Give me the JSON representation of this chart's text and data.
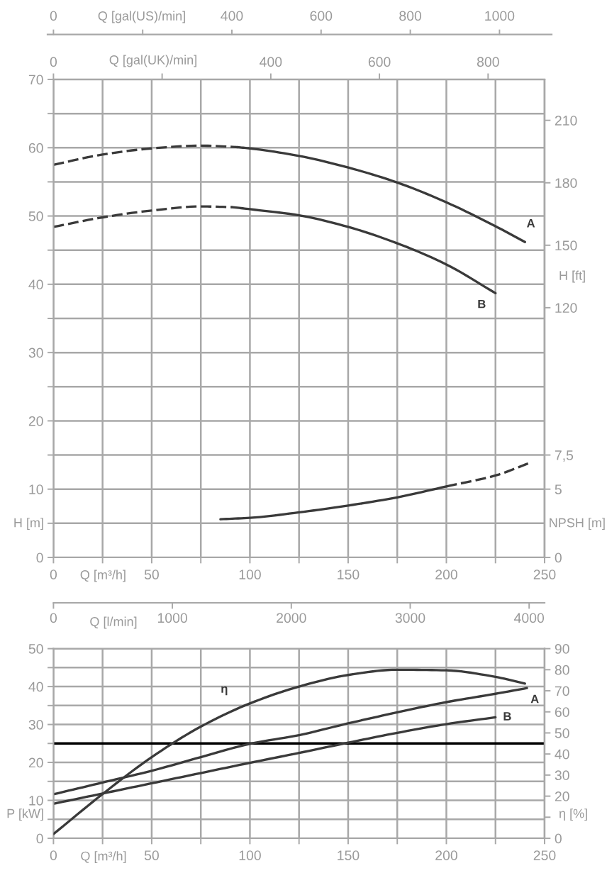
{
  "chart_data": [
    {
      "type": "line",
      "xlabel": "Q [m³/h]",
      "ylabel": "H [m]",
      "y2label": "H [ft]",
      "y3label": "NPSH [m]",
      "x2label": "Q [gal(UK)/min]",
      "annotations": [
        "Q [gal(US)/min]",
        "0",
        "400",
        "600",
        "800",
        "1000"
      ],
      "xlim": [
        0,
        250
      ],
      "xticks": [
        0,
        {
          "value": 25,
          "label": null
        },
        50,
        {
          "value": 75,
          "label": null
        },
        100,
        {
          "value": 125,
          "label": null
        },
        150,
        {
          "value": 175,
          "label": null
        },
        200,
        {
          "value": 225,
          "label": null
        },
        250
      ],
      "ylim": [
        0,
        70
      ],
      "yticks": [
        0,
        {
          "value": 5,
          "label": null
        },
        10,
        {
          "value": 15,
          "label": null
        },
        20,
        {
          "value": 25,
          "label": null
        },
        30,
        {
          "value": 35,
          "label": null
        },
        40,
        {
          "value": 45,
          "label": null
        },
        50,
        {
          "value": 55,
          "label": null
        },
        60,
        {
          "value": 65,
          "label": null
        },
        70
      ],
      "y2lim": [
        0,
        229.66
      ],
      "y2ticks": [
        120,
        150,
        180,
        210
      ],
      "y3lim": [
        0,
        35
      ],
      "y3ticks": [
        0,
        5,
        {
          "value": 7.5,
          "label": "7,5"
        }
      ],
      "x2lim": [
        0,
        904
      ],
      "x2ticks": [
        0,
        {
          "value": 200,
          "label": null
        },
        400,
        600,
        800
      ],
      "grid": true,
      "series": [
        {
          "color": "#3a3a3a",
          "line_style": "dashed",
          "x": [
            0,
            25,
            50,
            75,
            93
          ],
          "values": [
            57.5,
            59.0,
            59.9,
            60.3,
            60.1
          ]
        },
        {
          "name": "A",
          "color": "#3a3a3a",
          "line_style": "solid",
          "x": [
            93,
            100,
            125,
            150,
            175,
            200,
            225,
            240
          ],
          "values": [
            60.1,
            59.9,
            58.8,
            57.1,
            54.9,
            52.0,
            48.5,
            46.2
          ]
        },
        {
          "color": "#3a3a3a",
          "line_style": "dashed",
          "x": [
            0,
            25,
            50,
            75,
            91
          ],
          "values": [
            48.4,
            49.8,
            50.8,
            51.4,
            51.3
          ]
        },
        {
          "name": "B",
          "color": "#3a3a3a",
          "line_style": "solid",
          "x": [
            91,
            100,
            125,
            150,
            175,
            200,
            225
          ],
          "values": [
            51.3,
            51.0,
            50.1,
            48.4,
            46.0,
            42.9,
            38.7
          ]
        },
        {
          "color": "#3a3a3a",
          "line_style": "solid",
          "axis": "y3",
          "x": [
            85,
            100,
            125,
            150,
            175,
            200
          ],
          "values": [
            2.8,
            2.9,
            3.3,
            3.8,
            4.4,
            5.2
          ]
        },
        {
          "color": "#3a3a3a",
          "line_style": "dashed",
          "axis": "y3",
          "x": [
            200,
            225,
            242
          ],
          "values": [
            5.2,
            6.0,
            6.9
          ]
        }
      ]
    },
    {
      "type": "line",
      "xlabel": "Q [m³/h]",
      "ylabel": "P [kW]",
      "y2label": "η [%]",
      "x2label": "Q [l/min]",
      "xlim": [
        0,
        250
      ],
      "xticks": [
        0,
        {
          "value": 25,
          "label": null
        },
        50,
        {
          "value": 75,
          "label": null
        },
        100,
        {
          "value": 125,
          "label": null
        },
        150,
        {
          "value": 175,
          "label": null
        },
        200,
        {
          "value": 225,
          "label": null
        },
        250
      ],
      "ylim": [
        0,
        50
      ],
      "yticks": [
        0,
        {
          "value": 5,
          "label": null
        },
        10,
        {
          "value": 15,
          "label": null
        },
        20,
        {
          "value": 25,
          "label": null
        },
        30,
        {
          "value": 35,
          "label": null
        },
        40,
        {
          "value": 45,
          "label": null
        },
        50
      ],
      "y2lim": [
        0,
        90
      ],
      "y2ticks": [
        0,
        {
          "value": 10,
          "label": null
        },
        20,
        30,
        40,
        50,
        60,
        70,
        80,
        90
      ],
      "x2lim": [
        0,
        4130
      ],
      "x2ticks": [
        0,
        1000,
        2000,
        3000,
        4000
      ],
      "grid": true,
      "ref_lines": [
        {
          "axis": "y",
          "value": 25,
          "color": "#000000"
        }
      ],
      "series": [
        {
          "name": "η",
          "color": "#3a3a3a",
          "line_style": "solid",
          "axis": "y2",
          "x": [
            0,
            25,
            50,
            75,
            100,
            125,
            150,
            175,
            200,
            225,
            240
          ],
          "values": [
            2.0,
            21.0,
            38.5,
            53.0,
            64.0,
            72.0,
            77.5,
            80.0,
            79.7,
            76.6,
            73.4
          ]
        },
        {
          "name": "A",
          "color": "#3a3a3a",
          "line_style": "solid",
          "x": [
            0,
            25,
            50,
            75,
            100,
            125,
            150,
            175,
            200,
            225,
            241
          ],
          "values": [
            11.6,
            14.7,
            17.8,
            21.4,
            24.9,
            27.2,
            30.3,
            33.2,
            35.9,
            38.1,
            39.6
          ]
        },
        {
          "name": "B",
          "color": "#3a3a3a",
          "line_style": "solid",
          "x": [
            0,
            25,
            50,
            75,
            100,
            125,
            150,
            175,
            200,
            225
          ],
          "values": [
            9.1,
            11.8,
            14.5,
            17.2,
            19.9,
            22.5,
            25.2,
            27.8,
            30.1,
            31.9
          ]
        }
      ]
    }
  ]
}
